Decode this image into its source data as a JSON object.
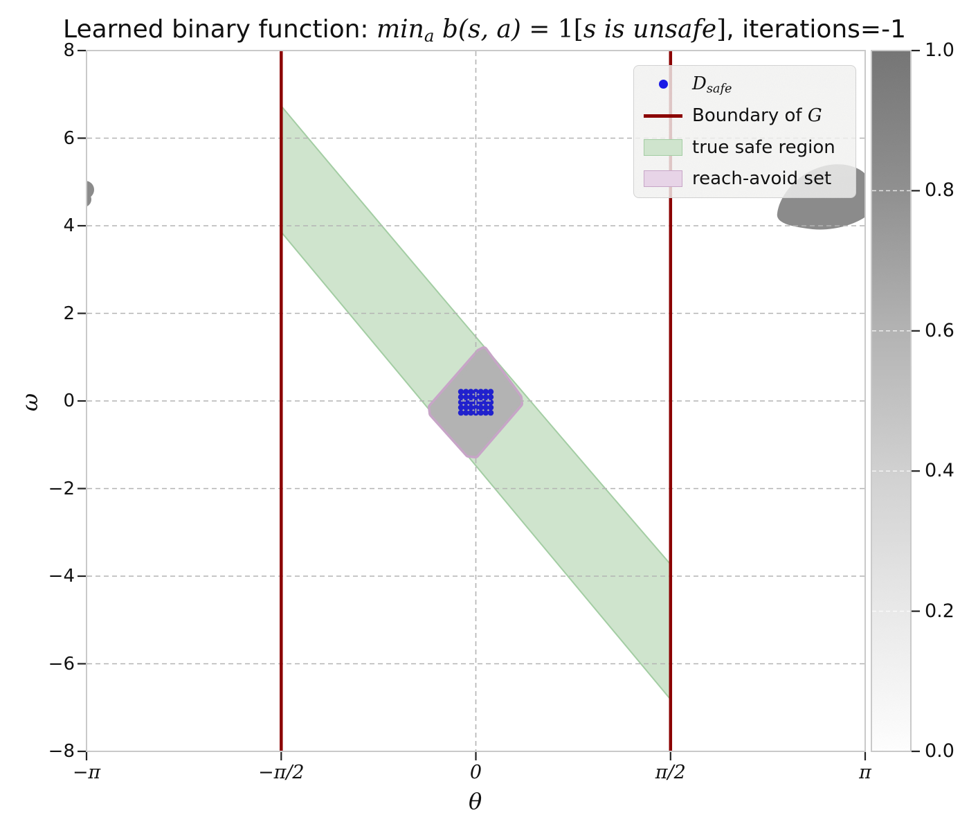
{
  "title": {
    "prefix": "Learned binary function: ",
    "m1": "min",
    "m1sub": "a",
    "m2": " b(s, a)",
    "m3": " = 1[",
    "m4": "s is unsafe",
    "m5": "]",
    "suffix": ", iterations=-1"
  },
  "axes": {
    "x": {
      "label": "θ",
      "ticks": [
        "−π",
        "−π/2",
        "0",
        "π/2",
        "π"
      ]
    },
    "y": {
      "label": "ω",
      "ticks": [
        "8",
        "6",
        "4",
        "2",
        "0",
        "−2",
        "−4",
        "−6",
        "−8"
      ]
    }
  },
  "legend": {
    "items": [
      {
        "marker": "blue-dot",
        "label_main": "D",
        "label_sub": "safe"
      },
      {
        "marker": "dark-red-line",
        "label": "Boundary of ",
        "symbol": "G"
      },
      {
        "marker": "green-patch",
        "label": "true safe region"
      },
      {
        "marker": "pink-patch",
        "label": "reach-avoid set"
      }
    ]
  },
  "colorbar": {
    "ticks": [
      "1.0",
      "0.8",
      "0.6",
      "0.4",
      "0.2",
      "0.0"
    ],
    "range": [
      0,
      1
    ]
  },
  "colors": {
    "boundary": "#8b0000",
    "true_safe_fill": "#cfe4cd",
    "true_safe_edge": "#a3cda3",
    "reach_avoid_edge": "#c7a5c7",
    "reach_avoid_fill": "#e7d4e7",
    "learned_mid_gray": "#b3b3b3",
    "learned_dark_gray": "#8b8b8b",
    "d_safe_blue": "#2121cd",
    "grid": "#b3b3b3",
    "frame": "#c9c9c9"
  },
  "chart_data": {
    "type": "scatter",
    "title": "Learned binary function: min_a b(s,a) = 1[s is unsafe], iterations=-1",
    "xlabel": "θ",
    "ylabel": "ω",
    "xlim": [
      -3.1416,
      3.1416
    ],
    "ylim": [
      -8,
      8
    ],
    "x_tick_values": [
      -3.1416,
      -1.5708,
      0,
      1.5708,
      3.1416
    ],
    "y_tick_values": [
      8,
      6,
      4,
      2,
      0,
      -2,
      -4,
      -6,
      -8
    ],
    "grid": true,
    "legend_position": "upper right",
    "colorbar": {
      "range": [
        0,
        1
      ],
      "tick_values": [
        1.0,
        0.8,
        0.6,
        0.4,
        0.2,
        0.0
      ],
      "cmap": "white-to-gray"
    },
    "boundary_of_G": {
      "kind": "vertical-lines",
      "theta": [
        -1.5708,
        1.5708
      ],
      "color": "#8b0000"
    },
    "true_safe_region": {
      "kind": "band-polygon",
      "vertices_theta_omega": [
        [
          -1.5708,
          6.74
        ],
        [
          1.5708,
          -3.73
        ],
        [
          1.5708,
          -6.81
        ],
        [
          -1.5708,
          3.85
        ]
      ],
      "alpha_fill_green": true
    },
    "reach_avoid_set": {
      "kind": "polygon",
      "vertices_theta_omega": [
        [
          0.06,
          1.19
        ],
        [
          0.37,
          0.03
        ],
        [
          -0.03,
          -1.31
        ],
        [
          -0.38,
          -0.18
        ]
      ]
    },
    "learned_unsafe_value_regions": [
      {
        "shape": "center-diamond",
        "approx_value": 0.3,
        "center": [
          0,
          0
        ],
        "extent_theta": 0.75,
        "extent_omega": 2.5
      },
      {
        "shape": "blob",
        "approx_value": 0.75,
        "center": [
          2.83,
          4.65
        ],
        "extent_theta": 0.72,
        "extent_omega": 1.55
      },
      {
        "shape": "edge-speck",
        "approx_value": 0.75,
        "center": [
          -3.14,
          4.85
        ]
      }
    ],
    "d_safe": {
      "kind": "scatter-grid",
      "theta_range": [
        -0.14,
        0.14
      ],
      "omega_range": [
        -0.33,
        0.27
      ],
      "cols": 7,
      "rows": 5
    }
  }
}
